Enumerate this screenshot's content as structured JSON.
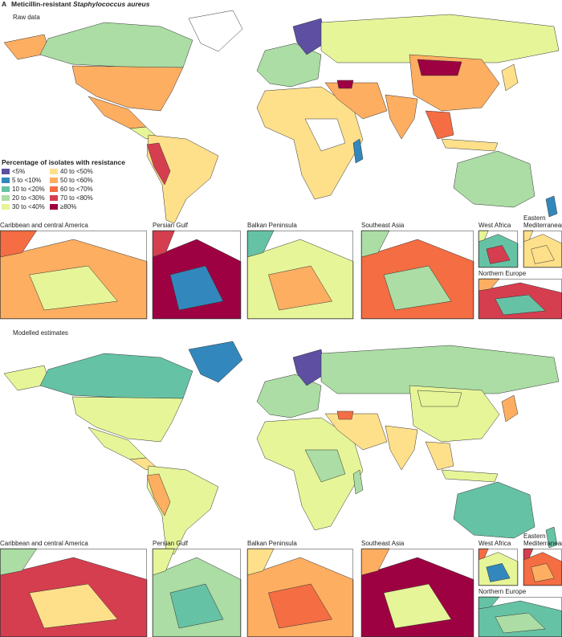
{
  "panel_label": "A",
  "title": {
    "prefix": "Meticillin-resistant ",
    "organism": "Staphylococcus aureus"
  },
  "legend": {
    "title": "Percentage of isolates with resistance",
    "items": [
      {
        "label": "<5%",
        "color": "#5e4fa2"
      },
      {
        "label": "5 to <10%",
        "color": "#3288bd"
      },
      {
        "label": "10 to <20%",
        "color": "#66c2a5"
      },
      {
        "label": "20 to <30%",
        "color": "#abdda4"
      },
      {
        "label": "30 to <40%",
        "color": "#e6f598"
      },
      {
        "label": "40 to <50%",
        "color": "#fee08b"
      },
      {
        "label": "50 to <60%",
        "color": "#fdae61"
      },
      {
        "label": "60 to <70%",
        "color": "#f46d43"
      },
      {
        "label": "70 to <80%",
        "color": "#d53e4f"
      },
      {
        "label": "≥80%",
        "color": "#9e0142"
      }
    ]
  },
  "panels": [
    {
      "title": "Raw data",
      "insets": [
        "Caribbean and central America",
        "Persian Gulf",
        "Balkan Peninsula",
        "Southeast Asia",
        "West Africa",
        "Eastern Mediterranean",
        "Northern Europe"
      ]
    },
    {
      "title": "Modelled estimates",
      "insets": [
        "Caribbean and central America",
        "Persian Gulf",
        "Balkan Peninsula",
        "Southeast Asia",
        "West Africa",
        "Eastern Mediterranean",
        "Northern Europe"
      ]
    }
  ]
}
